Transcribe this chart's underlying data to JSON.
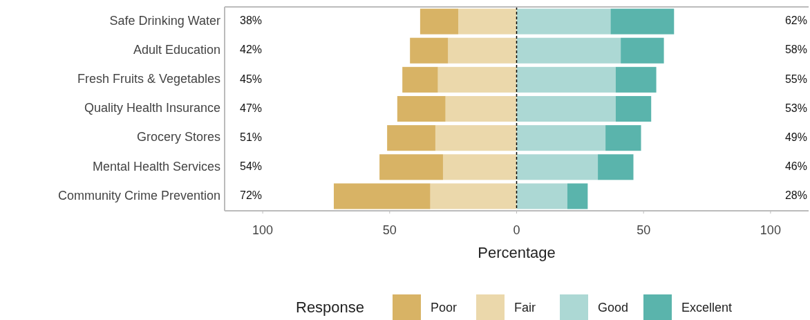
{
  "chart_data": {
    "type": "bar",
    "orientation": "horizontal",
    "stacked": true,
    "categories": [
      "Safe Drinking Water",
      "Adult Education",
      "Fresh Fruits & Vegetables",
      "Quality Health Insurance",
      "Grocery Stores",
      "Mental Health Services",
      "Community Crime Prevention"
    ],
    "series": [
      {
        "name": "Poor",
        "color": "#d8b365",
        "values": [
          -15,
          -15,
          -14,
          -19,
          -19,
          -25,
          -38
        ]
      },
      {
        "name": "Fair",
        "color": "#ebd8ab",
        "values": [
          -23,
          -27,
          -31,
          -28,
          -32,
          -29,
          -34
        ]
      },
      {
        "name": "Good",
        "color": "#acd8d4",
        "values": [
          37,
          41,
          39,
          39,
          35,
          32,
          20
        ]
      },
      {
        "name": "Excellent",
        "color": "#5ab4ac",
        "values": [
          25,
          17,
          16,
          14,
          14,
          14,
          8
        ]
      }
    ],
    "xlabel": "Percentage",
    "legend_title": "Response",
    "legend": "bottom",
    "grid": false,
    "xlim": [
      -115,
      115
    ],
    "xticks": [
      {
        "value": -100,
        "label": "100"
      },
      {
        "value": -50,
        "label": "50"
      },
      0,
      50,
      100
    ],
    "ref_lines": [
      {
        "axis": "x",
        "value": 0,
        "color": "#000000",
        "line_style": "dashed"
      }
    ],
    "annotations": [
      "38%",
      "42%",
      "45%",
      "47%",
      "51%",
      "54%",
      "72%",
      "62%",
      "58%",
      "55%",
      "53%",
      "49%",
      "46%",
      "28%"
    ]
  }
}
